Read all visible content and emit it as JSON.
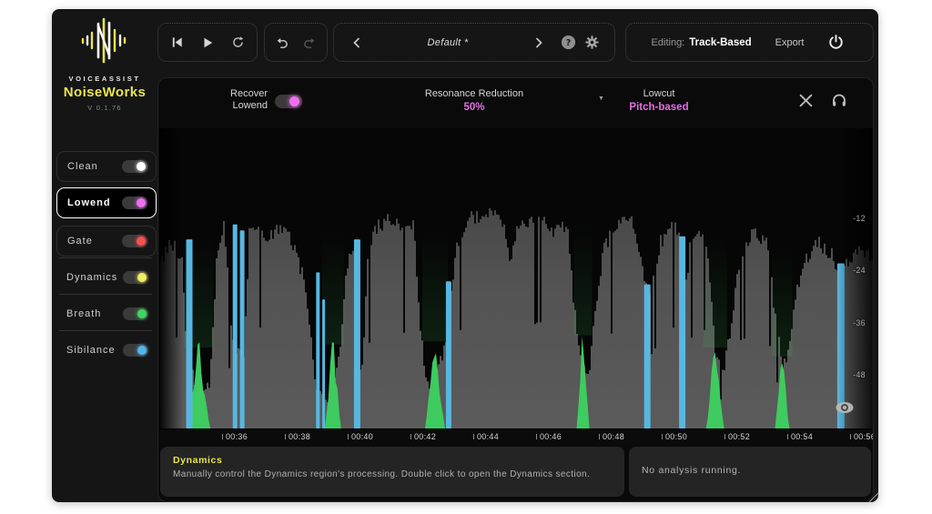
{
  "brand": {
    "name": "VOICEASSIST",
    "product": "NoiseWorks",
    "version": "V 0.1.76"
  },
  "toolbar": {
    "preset_name": "Default *",
    "editing_label": "Editing:",
    "editing_mode": "Track-Based",
    "export_label": "Export"
  },
  "sidebar": {
    "items": [
      {
        "label": "Clean",
        "toggle_color": "#ffffff",
        "on": true,
        "selected": false,
        "boxed": true
      },
      {
        "label": "Lowend",
        "toggle_color": "#ee6ff0",
        "on": true,
        "selected": true,
        "boxed": true
      },
      {
        "label": "Gate",
        "toggle_color": "#f4524d",
        "on": true,
        "selected": false,
        "boxed": true
      },
      {
        "label": "Dynamics",
        "toggle_color": "#f2ec5f",
        "on": true,
        "selected": false,
        "boxed": false
      },
      {
        "label": "Breath",
        "toggle_color": "#3fd763",
        "on": true,
        "selected": false,
        "boxed": false
      },
      {
        "label": "Sibilance",
        "toggle_color": "#54b4ea",
        "on": true,
        "selected": false,
        "boxed": false
      }
    ]
  },
  "panel": {
    "recover": {
      "label_line1": "Recover",
      "label_line2": "Lowend",
      "on": true,
      "color": "#ee6ff0"
    },
    "resonance": {
      "label": "Resonance Reduction",
      "value": "50%",
      "value_color": "#e66ee6"
    },
    "lowcut": {
      "label": "Lowcut",
      "value": "Pitch-based",
      "value_color": "#e66ee6"
    }
  },
  "waveform": {
    "type": "area",
    "db_labels": [
      "-12",
      "-24",
      "-36",
      "-48"
    ],
    "time_labels": [
      "00:36",
      "00:38",
      "00:40",
      "00:42",
      "00:44",
      "00:46",
      "00:48",
      "00:50",
      "00:52",
      "00:54",
      "00:56"
    ],
    "colors": {
      "bg": "#060606",
      "grey": "#555555",
      "sibilance": "#58b7e0",
      "breath": "#3ecb5f"
    },
    "envelope": [
      [
        0.0,
        0.55
      ],
      [
        0.015,
        0.62
      ],
      [
        0.03,
        0.58
      ],
      [
        0.038,
        0.2
      ],
      [
        0.055,
        0.14
      ],
      [
        0.07,
        0.15
      ],
      [
        0.08,
        0.6
      ],
      [
        0.09,
        0.68
      ],
      [
        0.1,
        0.3
      ],
      [
        0.105,
        0.25
      ],
      [
        0.118,
        0.25
      ],
      [
        0.125,
        0.66
      ],
      [
        0.15,
        0.64
      ],
      [
        0.17,
        0.67
      ],
      [
        0.19,
        0.6
      ],
      [
        0.205,
        0.45
      ],
      [
        0.218,
        0.12
      ],
      [
        0.232,
        0.08
      ],
      [
        0.245,
        0.15
      ],
      [
        0.255,
        0.35
      ],
      [
        0.262,
        0.55
      ],
      [
        0.27,
        0.62
      ],
      [
        0.275,
        0.25
      ],
      [
        0.283,
        0.2
      ],
      [
        0.29,
        0.55
      ],
      [
        0.3,
        0.66
      ],
      [
        0.32,
        0.7
      ],
      [
        0.34,
        0.66
      ],
      [
        0.355,
        0.68
      ],
      [
        0.365,
        0.3
      ],
      [
        0.375,
        0.15
      ],
      [
        0.39,
        0.2
      ],
      [
        0.4,
        0.3
      ],
      [
        0.407,
        0.42
      ],
      [
        0.415,
        0.6
      ],
      [
        0.43,
        0.7
      ],
      [
        0.46,
        0.72
      ],
      [
        0.48,
        0.68
      ],
      [
        0.49,
        0.55
      ],
      [
        0.5,
        0.68
      ],
      [
        0.53,
        0.7
      ],
      [
        0.55,
        0.66
      ],
      [
        0.57,
        0.68
      ],
      [
        0.578,
        0.45
      ],
      [
        0.59,
        0.2
      ],
      [
        0.6,
        0.18
      ],
      [
        0.61,
        0.4
      ],
      [
        0.62,
        0.6
      ],
      [
        0.64,
        0.68
      ],
      [
        0.66,
        0.7
      ],
      [
        0.675,
        0.55
      ],
      [
        0.683,
        0.45
      ],
      [
        0.69,
        0.5
      ],
      [
        0.7,
        0.62
      ],
      [
        0.72,
        0.68
      ],
      [
        0.73,
        0.6
      ],
      [
        0.735,
        0.45
      ],
      [
        0.742,
        0.62
      ],
      [
        0.76,
        0.66
      ],
      [
        0.77,
        0.5
      ],
      [
        0.778,
        0.22
      ],
      [
        0.79,
        0.2
      ],
      [
        0.8,
        0.35
      ],
      [
        0.81,
        0.55
      ],
      [
        0.83,
        0.66
      ],
      [
        0.85,
        0.62
      ],
      [
        0.862,
        0.35
      ],
      [
        0.872,
        0.2
      ],
      [
        0.882,
        0.3
      ],
      [
        0.89,
        0.45
      ],
      [
        0.9,
        0.55
      ],
      [
        0.92,
        0.62
      ],
      [
        0.94,
        0.58
      ],
      [
        0.95,
        0.48
      ],
      [
        0.96,
        0.55
      ],
      [
        0.98,
        0.6
      ],
      [
        1.0,
        0.55
      ]
    ],
    "sibilance_bars": [
      {
        "x": 0.042,
        "h": 0.63,
        "w": 7
      },
      {
        "x": 0.106,
        "h": 0.68,
        "w": 5
      },
      {
        "x": 0.116,
        "h": 0.66,
        "w": 5
      },
      {
        "x": 0.222,
        "h": 0.52,
        "w": 4
      },
      {
        "x": 0.23,
        "h": 0.43,
        "w": 3
      },
      {
        "x": 0.277,
        "h": 0.63,
        "w": 7
      },
      {
        "x": 0.405,
        "h": 0.49,
        "w": 6
      },
      {
        "x": 0.683,
        "h": 0.48,
        "w": 7
      },
      {
        "x": 0.732,
        "h": 0.64,
        "w": 7
      },
      {
        "x": 0.954,
        "h": 0.55,
        "w": 8
      }
    ],
    "breath_peaks": [
      {
        "x": 0.055,
        "h": 0.27,
        "hw": 13
      },
      {
        "x": 0.243,
        "h": 0.28,
        "hw": 9
      },
      {
        "x": 0.386,
        "h": 0.29,
        "hw": 11
      },
      {
        "x": 0.593,
        "h": 0.31,
        "hw": 7
      },
      {
        "x": 0.778,
        "h": 0.27,
        "hw": 10
      },
      {
        "x": 0.872,
        "h": 0.24,
        "hw": 8
      }
    ]
  },
  "info_panel": {
    "title": "Dynamics",
    "body": "Manually control the Dynamics region's processing. Double click to open the Dynamics section."
  },
  "status_panel": {
    "text": "No analysis running."
  }
}
